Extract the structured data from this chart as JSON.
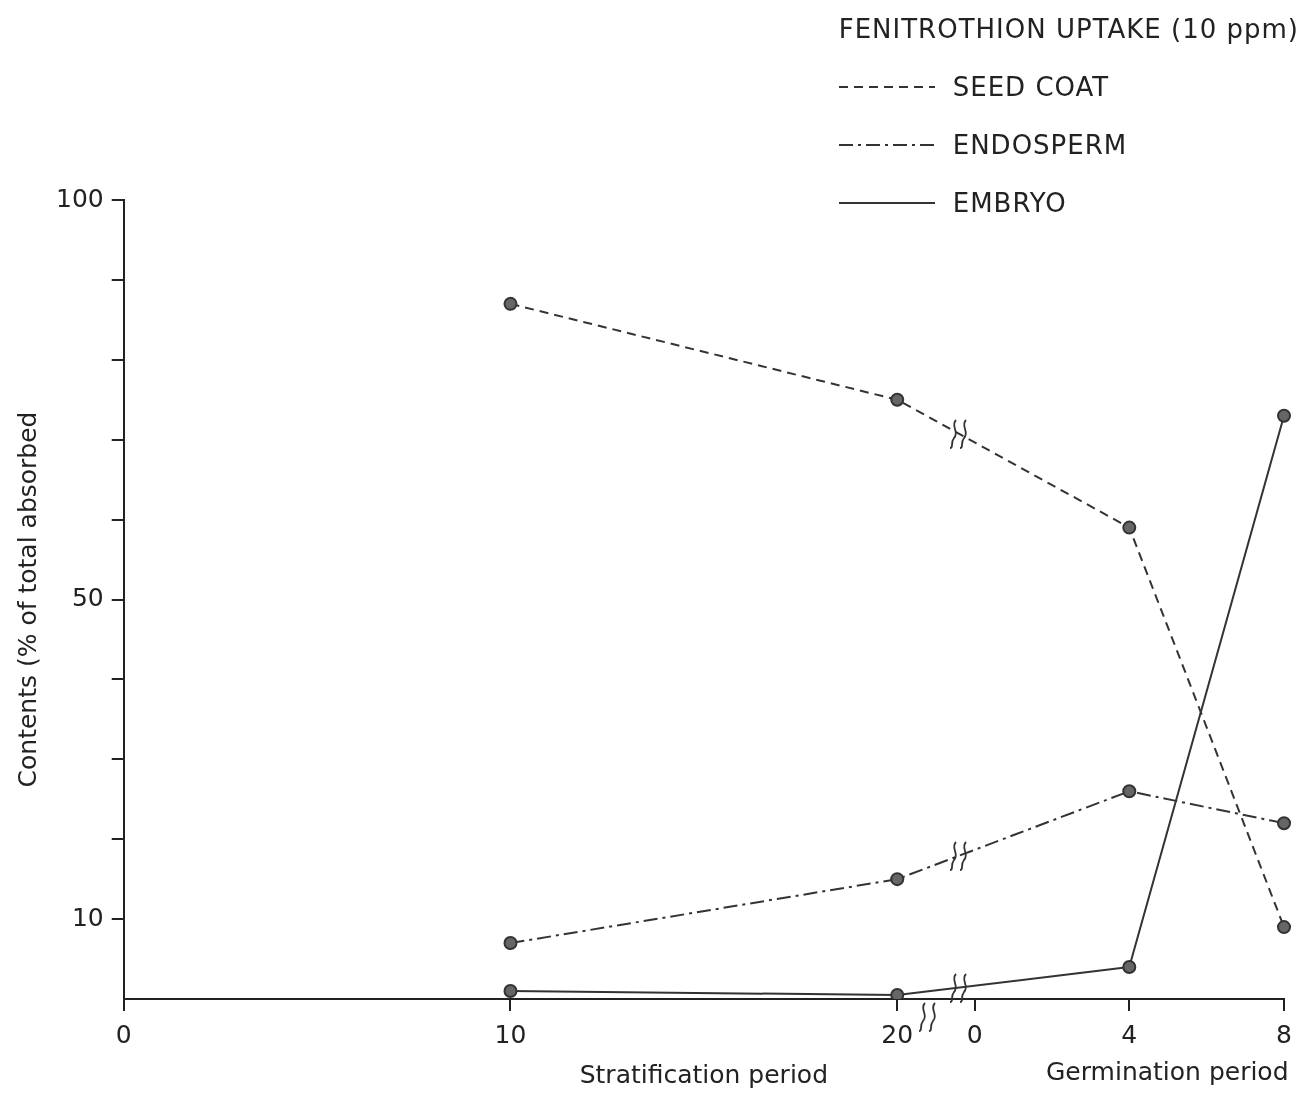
{
  "chart_data": {
    "type": "line",
    "legend_title": "FENITROTHION UPTAKE (10 ppm)",
    "xlabel": "Stratification period",
    "ylabel": "Contents (% of total absorbed",
    "annotations": [
      "Germination period"
    ],
    "categories": [
      "0",
      null,
      null,
      null,
      null,
      "10",
      null,
      null,
      null,
      null,
      "20",
      "0",
      null,
      "4",
      null,
      "8"
    ],
    "ylim": [
      0,
      100
    ],
    "yticks": [
      {
        "value": 10,
        "label": "10"
      },
      {
        "value": 20,
        "label": null
      },
      {
        "value": 30,
        "label": null
      },
      {
        "value": 40,
        "label": null
      },
      {
        "value": 50,
        "label": "50"
      },
      {
        "value": 60,
        "label": null
      },
      {
        "value": 70,
        "label": null
      },
      {
        "value": 80,
        "label": null
      },
      {
        "value": 90,
        "label": null
      },
      {
        "value": 100,
        "label": "100"
      }
    ],
    "grid": false,
    "legend": "top right",
    "marker": "circle",
    "series": [
      {
        "name": "SEED COAT",
        "color": "#333333",
        "line_style": "dashed",
        "values": [
          null,
          null,
          null,
          null,
          null,
          87,
          null,
          null,
          null,
          null,
          75,
          null,
          null,
          59,
          null,
          9
        ]
      },
      {
        "name": "ENDOSPERM",
        "color": "#333333",
        "line_style": "dashdot",
        "values": [
          null,
          null,
          null,
          null,
          null,
          7,
          null,
          null,
          null,
          null,
          15,
          null,
          null,
          26,
          null,
          22
        ]
      },
      {
        "name": "EMBRYO",
        "color": "#333333",
        "line_style": "solid",
        "values": [
          null,
          null,
          null,
          null,
          null,
          1,
          null,
          null,
          null,
          null,
          0.5,
          null,
          null,
          4,
          null,
          73
        ]
      }
    ]
  }
}
